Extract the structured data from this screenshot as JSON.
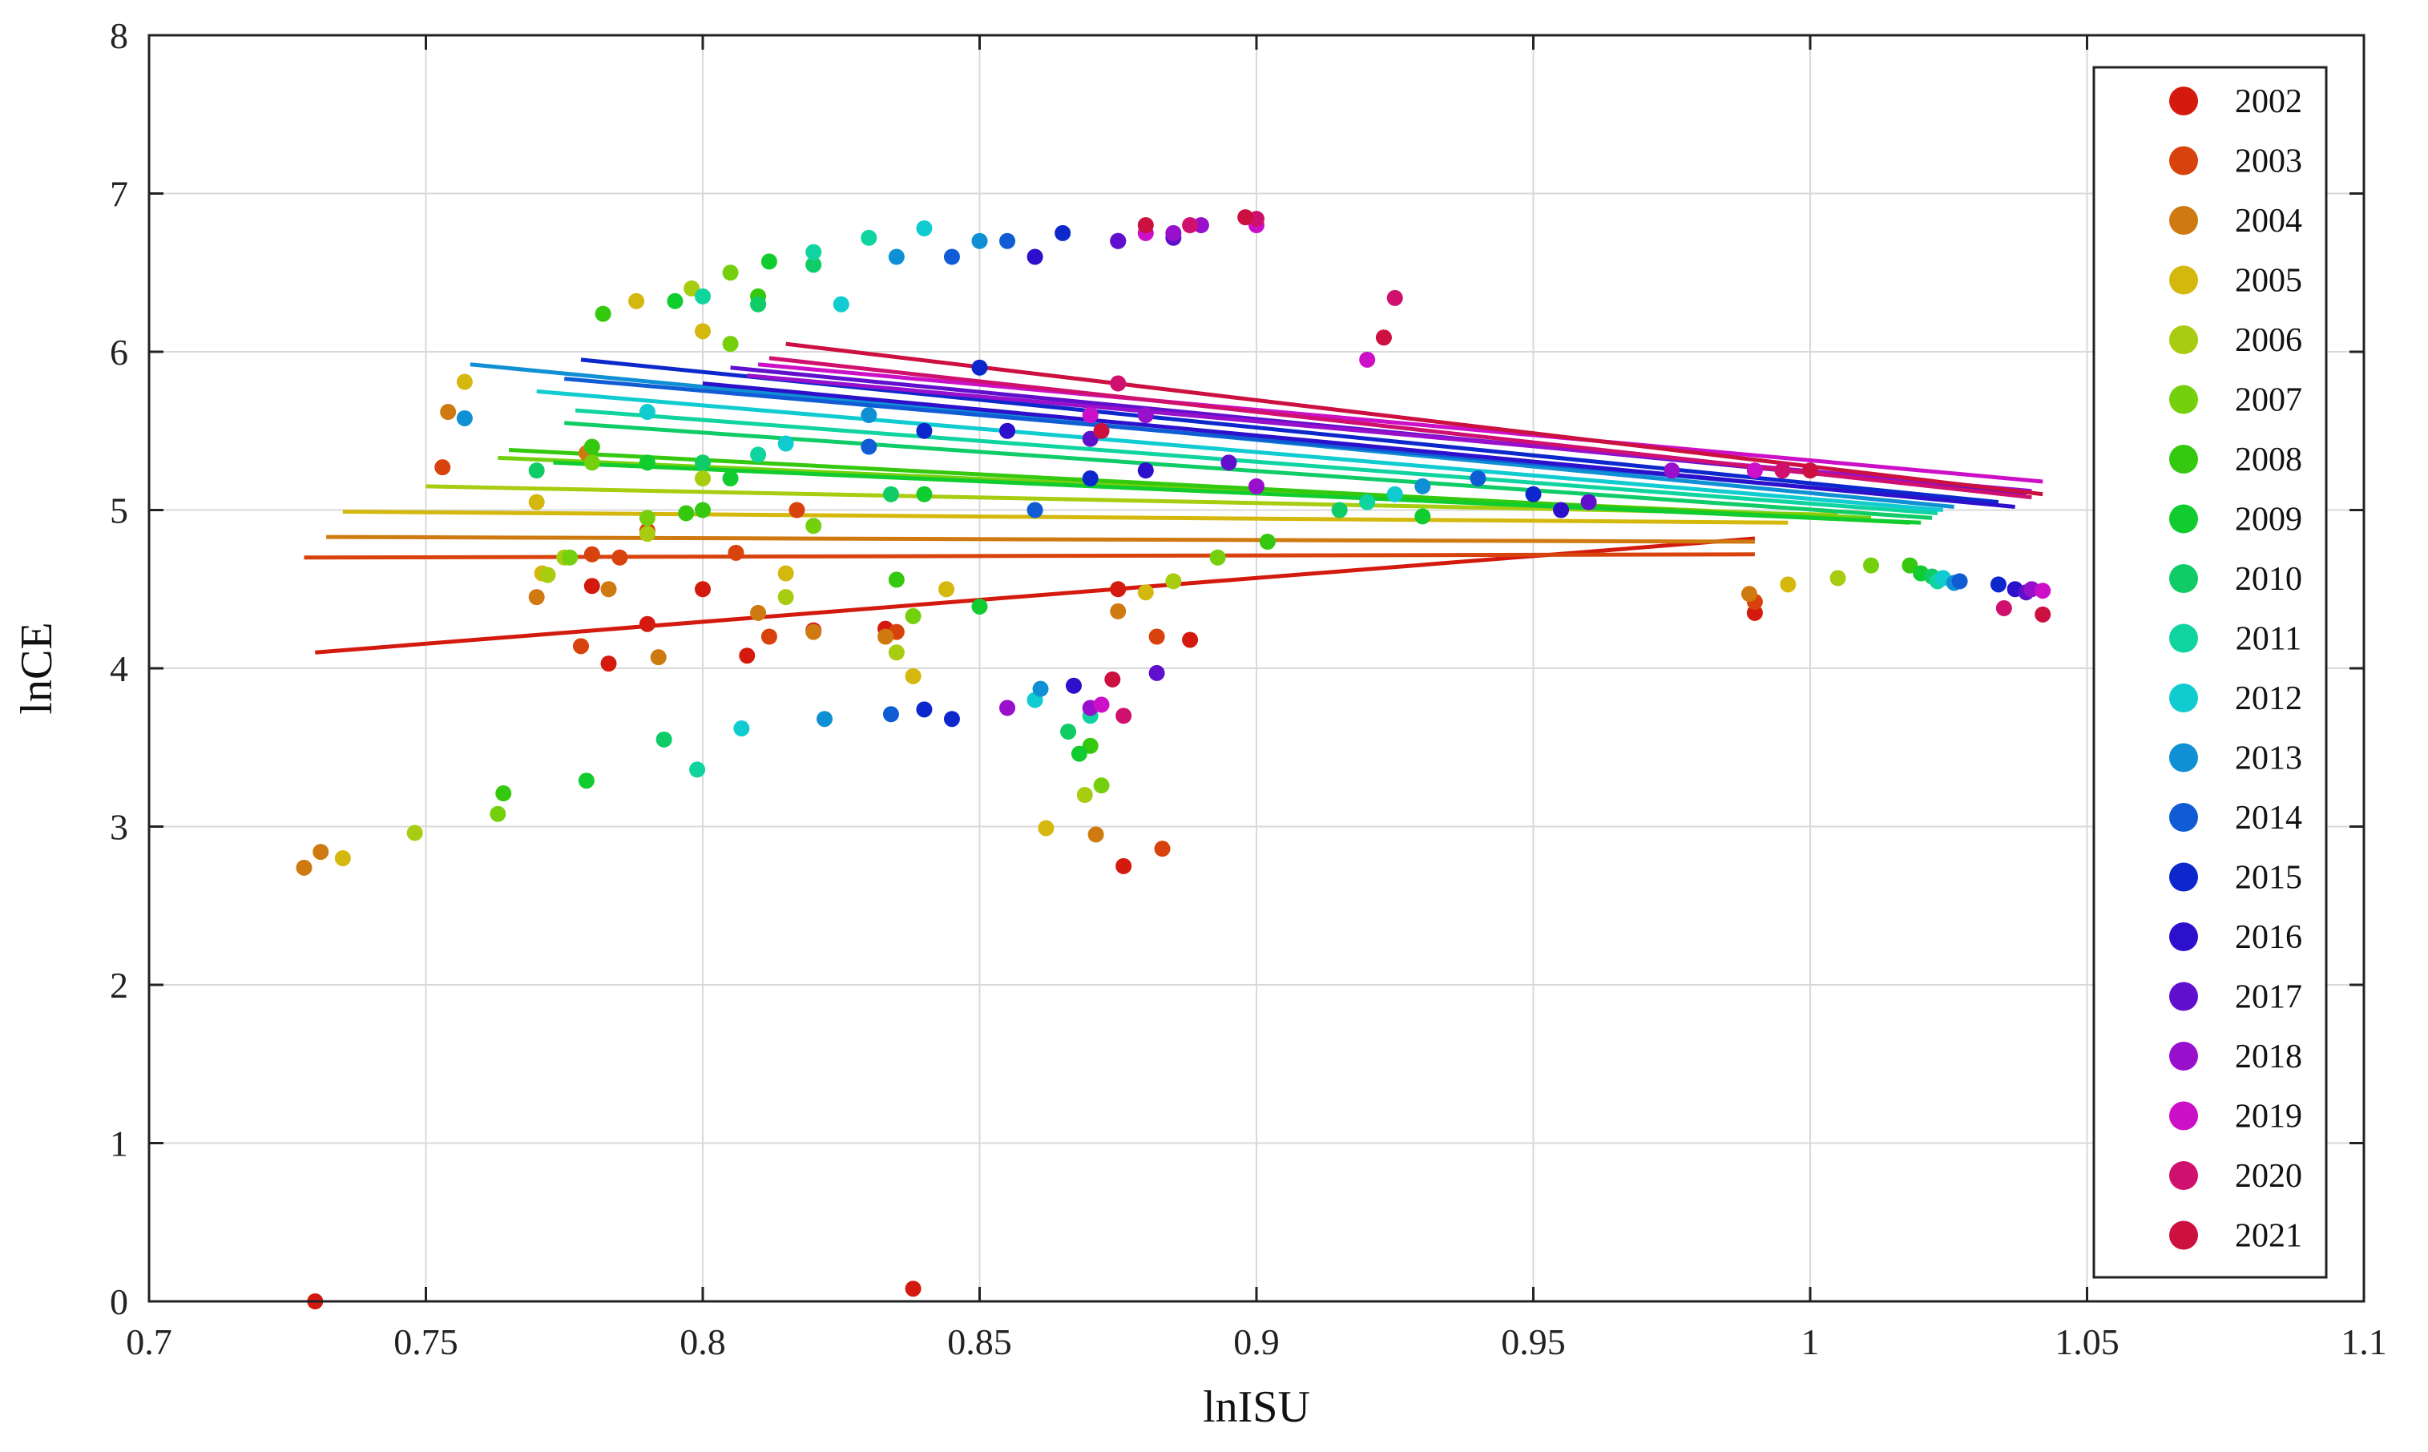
{
  "chart_data": {
    "type": "scatter",
    "title": "",
    "xlabel": "lnISU",
    "ylabel": "lnCE",
    "xlim": [
      0.7,
      1.1
    ],
    "ylim": [
      0,
      8
    ],
    "xticks": [
      0.7,
      0.75,
      0.8,
      0.85,
      0.9,
      0.95,
      1,
      1.05,
      1.1
    ],
    "xtick_labels": [
      "0.7",
      "0.75",
      "0.8",
      "0.85",
      "0.9",
      "0.95",
      "1",
      "1.05",
      "1.1"
    ],
    "yticks": [
      0,
      1,
      2,
      3,
      4,
      5,
      6,
      7,
      8
    ],
    "ytick_labels": [
      "0",
      "1",
      "2",
      "3",
      "4",
      "5",
      "6",
      "7",
      "8"
    ],
    "grid": true,
    "legend_position": "right",
    "series": [
      {
        "name": "2002",
        "color": "#d41a0e",
        "points": [
          [
            0.73,
            0.0
          ],
          [
            0.838,
            0.08
          ],
          [
            0.876,
            2.75
          ],
          [
            0.78,
            4.52
          ],
          [
            0.79,
            4.28
          ],
          [
            0.8,
            4.5
          ],
          [
            0.82,
            4.24
          ],
          [
            0.833,
            4.25
          ],
          [
            0.875,
            4.5
          ],
          [
            0.888,
            4.18
          ],
          [
            0.99,
            4.35
          ],
          [
            0.783,
            4.03
          ],
          [
            0.808,
            4.08
          ]
        ],
        "fit": [
          [
            0.73,
            4.1
          ],
          [
            0.99,
            4.82
          ]
        ]
      },
      {
        "name": "2003",
        "color": "#d8420c",
        "points": [
          [
            0.753,
            5.27
          ],
          [
            0.778,
            4.14
          ],
          [
            0.78,
            4.72
          ],
          [
            0.785,
            4.7
          ],
          [
            0.79,
            4.87
          ],
          [
            0.806,
            4.73
          ],
          [
            0.812,
            4.2
          ],
          [
            0.835,
            4.23
          ],
          [
            0.882,
            4.2
          ],
          [
            0.883,
            2.86
          ],
          [
            0.99,
            4.42
          ],
          [
            0.817,
            5.0
          ]
        ],
        "fit": [
          [
            0.728,
            4.7
          ],
          [
            0.99,
            4.72
          ]
        ]
      },
      {
        "name": "2004",
        "color": "#cf7a10",
        "points": [
          [
            0.728,
            2.74
          ],
          [
            0.731,
            2.84
          ],
          [
            0.77,
            4.45
          ],
          [
            0.783,
            4.5
          ],
          [
            0.792,
            4.07
          ],
          [
            0.81,
            4.35
          ],
          [
            0.82,
            4.23
          ],
          [
            0.833,
            4.2
          ],
          [
            0.871,
            2.95
          ],
          [
            0.875,
            4.36
          ],
          [
            0.989,
            4.47
          ],
          [
            0.754,
            5.62
          ],
          [
            0.779,
            5.36
          ]
        ],
        "fit": [
          [
            0.732,
            4.83
          ],
          [
            0.99,
            4.8
          ]
        ]
      },
      {
        "name": "2005",
        "color": "#d4b80e",
        "points": [
          [
            0.735,
            2.8
          ],
          [
            0.757,
            5.81
          ],
          [
            0.77,
            5.05
          ],
          [
            0.771,
            4.6
          ],
          [
            0.788,
            6.32
          ],
          [
            0.8,
            6.13
          ],
          [
            0.838,
            3.95
          ],
          [
            0.844,
            4.5
          ],
          [
            0.862,
            2.99
          ],
          [
            0.88,
            4.48
          ],
          [
            0.996,
            4.53
          ],
          [
            0.815,
            4.6
          ]
        ],
        "fit": [
          [
            0.735,
            4.99
          ],
          [
            0.996,
            4.92
          ]
        ]
      },
      {
        "name": "2006",
        "color": "#a8cc10",
        "points": [
          [
            0.748,
            2.96
          ],
          [
            0.772,
            4.59
          ],
          [
            0.775,
            4.7
          ],
          [
            0.79,
            4.85
          ],
          [
            0.8,
            5.2
          ],
          [
            0.815,
            4.45
          ],
          [
            0.835,
            4.1
          ],
          [
            0.869,
            3.2
          ],
          [
            0.885,
            4.55
          ],
          [
            1.005,
            4.57
          ],
          [
            0.798,
            6.4
          ]
        ],
        "fit": [
          [
            0.75,
            5.15
          ],
          [
            1.005,
            4.97
          ]
        ]
      },
      {
        "name": "2007",
        "color": "#74d00c",
        "points": [
          [
            0.763,
            3.08
          ],
          [
            0.776,
            4.7
          ],
          [
            0.78,
            5.3
          ],
          [
            0.79,
            4.95
          ],
          [
            0.805,
            6.05
          ],
          [
            0.82,
            4.9
          ],
          [
            0.838,
            4.33
          ],
          [
            0.872,
            3.26
          ],
          [
            0.893,
            4.7
          ],
          [
            1.011,
            4.65
          ],
          [
            0.805,
            6.5
          ]
        ],
        "fit": [
          [
            0.763,
            5.33
          ],
          [
            1.011,
            4.95
          ]
        ]
      },
      {
        "name": "2008",
        "color": "#34c80e",
        "points": [
          [
            0.764,
            3.21
          ],
          [
            0.78,
            5.4
          ],
          [
            0.782,
            6.24
          ],
          [
            0.797,
            4.98
          ],
          [
            0.81,
            6.35
          ],
          [
            0.835,
            4.56
          ],
          [
            0.87,
            3.51
          ],
          [
            0.902,
            4.8
          ],
          [
            1.018,
            4.65
          ],
          [
            0.8,
            5.0
          ]
        ],
        "fit": [
          [
            0.765,
            5.38
          ],
          [
            1.018,
            4.92
          ]
        ]
      },
      {
        "name": "2009",
        "color": "#10cc2e",
        "points": [
          [
            0.779,
            3.29
          ],
          [
            0.79,
            5.3
          ],
          [
            0.795,
            6.32
          ],
          [
            0.805,
            5.2
          ],
          [
            0.812,
            6.57
          ],
          [
            0.85,
            4.39
          ],
          [
            0.868,
            3.46
          ],
          [
            0.93,
            4.96
          ],
          [
            1.02,
            4.6
          ],
          [
            0.84,
            5.1
          ]
        ],
        "fit": [
          [
            0.773,
            5.3
          ],
          [
            1.02,
            4.92
          ]
        ]
      },
      {
        "name": "2010",
        "color": "#10cc66",
        "points": [
          [
            0.793,
            3.55
          ],
          [
            0.8,
            5.3
          ],
          [
            0.81,
            6.3
          ],
          [
            0.82,
            6.55
          ],
          [
            0.834,
            5.1
          ],
          [
            0.866,
            3.6
          ],
          [
            0.915,
            5.0
          ],
          [
            1.022,
            4.58
          ],
          [
            0.77,
            5.25
          ]
        ],
        "fit": [
          [
            0.775,
            5.55
          ],
          [
            1.022,
            4.95
          ]
        ]
      },
      {
        "name": "2011",
        "color": "#10d4a0",
        "points": [
          [
            0.799,
            3.36
          ],
          [
            0.81,
            5.35
          ],
          [
            0.82,
            6.63
          ],
          [
            0.83,
            6.72
          ],
          [
            0.87,
            3.7
          ],
          [
            0.92,
            5.05
          ],
          [
            1.023,
            4.55
          ],
          [
            0.8,
            6.35
          ]
        ],
        "fit": [
          [
            0.777,
            5.63
          ],
          [
            1.023,
            4.98
          ]
        ]
      },
      {
        "name": "2012",
        "color": "#10ccd0",
        "points": [
          [
            0.807,
            3.62
          ],
          [
            0.815,
            5.42
          ],
          [
            0.825,
            6.3
          ],
          [
            0.84,
            6.78
          ],
          [
            0.86,
            3.8
          ],
          [
            0.925,
            5.1
          ],
          [
            1.024,
            4.57
          ],
          [
            0.79,
            5.62
          ]
        ],
        "fit": [
          [
            0.77,
            5.75
          ],
          [
            1.024,
            5.0
          ]
        ]
      },
      {
        "name": "2013",
        "color": "#1090d4",
        "points": [
          [
            0.757,
            5.58
          ],
          [
            0.822,
            3.68
          ],
          [
            0.83,
            5.6
          ],
          [
            0.835,
            6.6
          ],
          [
            0.85,
            6.7
          ],
          [
            0.861,
            3.87
          ],
          [
            0.93,
            5.15
          ],
          [
            1.026,
            4.54
          ]
        ],
        "fit": [
          [
            0.758,
            5.92
          ],
          [
            1.026,
            5.02
          ]
        ]
      },
      {
        "name": "2014",
        "color": "#105cd4",
        "points": [
          [
            0.834,
            3.71
          ],
          [
            0.83,
            5.4
          ],
          [
            0.845,
            6.6
          ],
          [
            0.855,
            6.7
          ],
          [
            0.86,
            5.0
          ],
          [
            0.94,
            5.2
          ],
          [
            1.027,
            4.55
          ]
        ],
        "fit": [
          [
            0.775,
            5.83
          ],
          [
            1.027,
            5.06
          ]
        ]
      },
      {
        "name": "2015",
        "color": "#0c28cc",
        "points": [
          [
            0.84,
            3.74
          ],
          [
            0.845,
            3.68
          ],
          [
            0.84,
            5.5
          ],
          [
            0.85,
            5.9
          ],
          [
            0.865,
            6.75
          ],
          [
            0.87,
            5.2
          ],
          [
            0.95,
            5.1
          ],
          [
            1.034,
            4.53
          ]
        ],
        "fit": [
          [
            0.778,
            5.95
          ],
          [
            1.034,
            5.05
          ]
        ]
      },
      {
        "name": "2016",
        "color": "#2c10cc",
        "points": [
          [
            0.867,
            3.89
          ],
          [
            0.855,
            5.5
          ],
          [
            0.86,
            6.6
          ],
          [
            0.875,
            6.7
          ],
          [
            0.88,
            5.25
          ],
          [
            0.955,
            5.0
          ],
          [
            1.037,
            4.5
          ]
        ],
        "fit": [
          [
            0.8,
            5.8
          ],
          [
            1.037,
            5.02
          ]
        ]
      },
      {
        "name": "2017",
        "color": "#6010cc",
        "points": [
          [
            0.882,
            3.97
          ],
          [
            0.87,
            5.45
          ],
          [
            0.875,
            6.7
          ],
          [
            0.885,
            6.72
          ],
          [
            0.895,
            5.3
          ],
          [
            0.96,
            5.05
          ],
          [
            1.039,
            4.48
          ]
        ],
        "fit": [
          [
            0.805,
            5.9
          ],
          [
            1.039,
            5.1
          ]
        ]
      },
      {
        "name": "2018",
        "color": "#9810cc",
        "points": [
          [
            0.855,
            3.75
          ],
          [
            0.87,
            3.75
          ],
          [
            0.88,
            5.6
          ],
          [
            0.885,
            6.75
          ],
          [
            0.89,
            6.8
          ],
          [
            0.9,
            5.15
          ],
          [
            0.975,
            5.25
          ],
          [
            1.04,
            4.5
          ]
        ],
        "fit": [
          [
            0.808,
            5.85
          ],
          [
            1.04,
            5.12
          ]
        ]
      },
      {
        "name": "2019",
        "color": "#cc10c8",
        "points": [
          [
            0.872,
            3.77
          ],
          [
            0.87,
            5.6
          ],
          [
            0.88,
            6.75
          ],
          [
            0.9,
            6.8
          ],
          [
            0.92,
            5.95
          ],
          [
            0.99,
            5.25
          ],
          [
            1.042,
            4.49
          ]
        ],
        "fit": [
          [
            0.81,
            5.92
          ],
          [
            1.042,
            5.18
          ]
        ]
      },
      {
        "name": "2020",
        "color": "#d0106e",
        "points": [
          [
            0.876,
            3.7
          ],
          [
            0.875,
            5.8
          ],
          [
            0.888,
            6.8
          ],
          [
            0.9,
            6.84
          ],
          [
            0.925,
            6.34
          ],
          [
            0.995,
            5.25
          ],
          [
            1.035,
            4.38
          ]
        ],
        "fit": [
          [
            0.812,
            5.96
          ],
          [
            1.04,
            5.08
          ]
        ]
      },
      {
        "name": "2021",
        "color": "#cc1040",
        "points": [
          [
            0.874,
            3.93
          ],
          [
            0.872,
            5.5
          ],
          [
            0.88,
            6.8
          ],
          [
            0.898,
            6.85
          ],
          [
            0.923,
            6.09
          ],
          [
            1.0,
            5.25
          ],
          [
            1.042,
            4.34
          ]
        ],
        "fit": [
          [
            0.815,
            6.05
          ],
          [
            1.042,
            5.1
          ]
        ]
      }
    ]
  }
}
